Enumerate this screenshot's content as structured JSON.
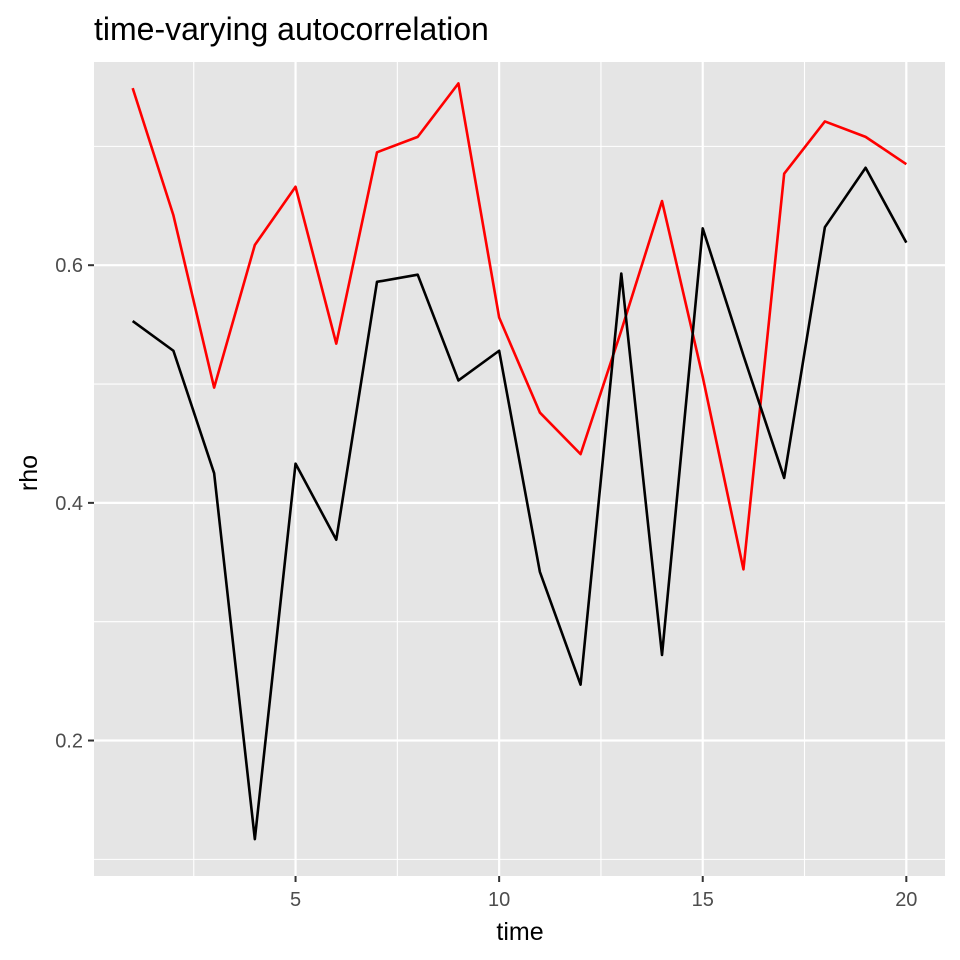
{
  "chart_data": {
    "type": "line",
    "title": "time-varying autocorrelation",
    "xlabel": "time",
    "ylabel": "rho",
    "xlim": [
      0.05,
      20.95
    ],
    "ylim": [
      0.086,
      0.771
    ],
    "x_ticks": [
      5,
      10,
      15,
      20
    ],
    "x_tick_labels": [
      "5",
      "10",
      "15",
      "20"
    ],
    "x_minor_ticks": [
      2.5,
      7.5,
      12.5,
      17.5
    ],
    "y_ticks": [
      0.2,
      0.4,
      0.6
    ],
    "y_tick_labels": [
      "0.2",
      "0.4",
      "0.6"
    ],
    "y_minor_ticks": [
      0.1,
      0.3,
      0.5,
      0.7
    ],
    "grid": true,
    "legend": "none",
    "background_color": "#E5E5E5",
    "grid_color": "#FFFFFF",
    "x": [
      1,
      2,
      3,
      4,
      5,
      6,
      7,
      8,
      9,
      10,
      11,
      12,
      13,
      14,
      15,
      16,
      17,
      18,
      19,
      20
    ],
    "series": [
      {
        "color": "#FF0000",
        "values": [
          0.749,
          0.642,
          0.497,
          0.617,
          0.666,
          0.534,
          0.695,
          0.708,
          0.753,
          0.556,
          0.476,
          0.441,
          0.545,
          0.654,
          0.506,
          0.344,
          0.677,
          0.721,
          0.708,
          0.685
        ]
      },
      {
        "color": "#000000",
        "values": [
          0.553,
          0.528,
          0.425,
          0.117,
          0.433,
          0.369,
          0.586,
          0.592,
          0.503,
          0.528,
          0.342,
          0.247,
          0.593,
          0.272,
          0.631,
          0.524,
          0.421,
          0.632,
          0.682,
          0.619
        ]
      }
    ]
  }
}
